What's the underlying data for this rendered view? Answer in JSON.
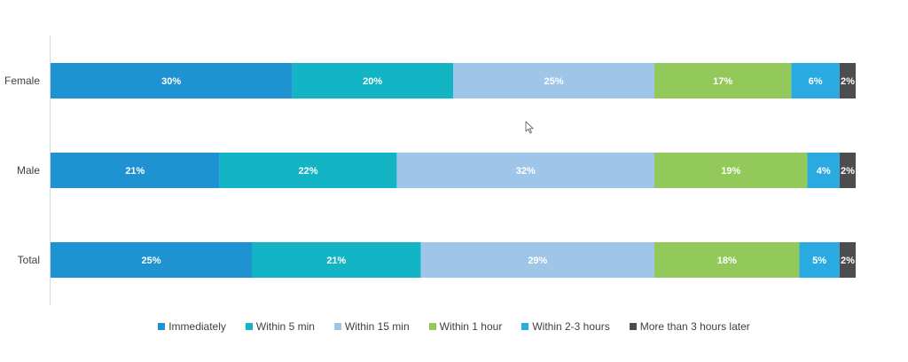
{
  "chart_data": {
    "type": "bar",
    "orientation": "horizontal",
    "stacked": true,
    "categories": [
      "Female",
      "Male",
      "Total"
    ],
    "series": [
      {
        "name": "Immediately",
        "color": "#1f93d2",
        "values": [
          30,
          21,
          25
        ]
      },
      {
        "name": "Within 5 min",
        "color": "#13b4c4",
        "values": [
          20,
          22,
          21
        ]
      },
      {
        "name": "Within 15 min",
        "color": "#9fc5e8",
        "values": [
          25,
          32,
          29
        ]
      },
      {
        "name": "Within 1 hour",
        "color": "#92c95a",
        "values": [
          17,
          19,
          18
        ]
      },
      {
        "name": "Within 2-3 hours",
        "color": "#29abe2",
        "values": [
          6,
          4,
          5
        ]
      },
      {
        "name": "More than 3 hours later",
        "color": "#4d4d4f",
        "values": [
          2,
          2,
          2
        ]
      }
    ],
    "labels": [
      [
        "30%",
        "20%",
        "25%",
        "17%",
        "6%",
        "2%"
      ],
      [
        "21%",
        "22%",
        "32%",
        "19%",
        "4%",
        "2%"
      ],
      [
        "25%",
        "21%",
        "29%",
        "18%",
        "5%",
        "2%"
      ]
    ],
    "xlim": [
      0,
      100
    ],
    "grid": false,
    "legend_position": "bottom"
  }
}
